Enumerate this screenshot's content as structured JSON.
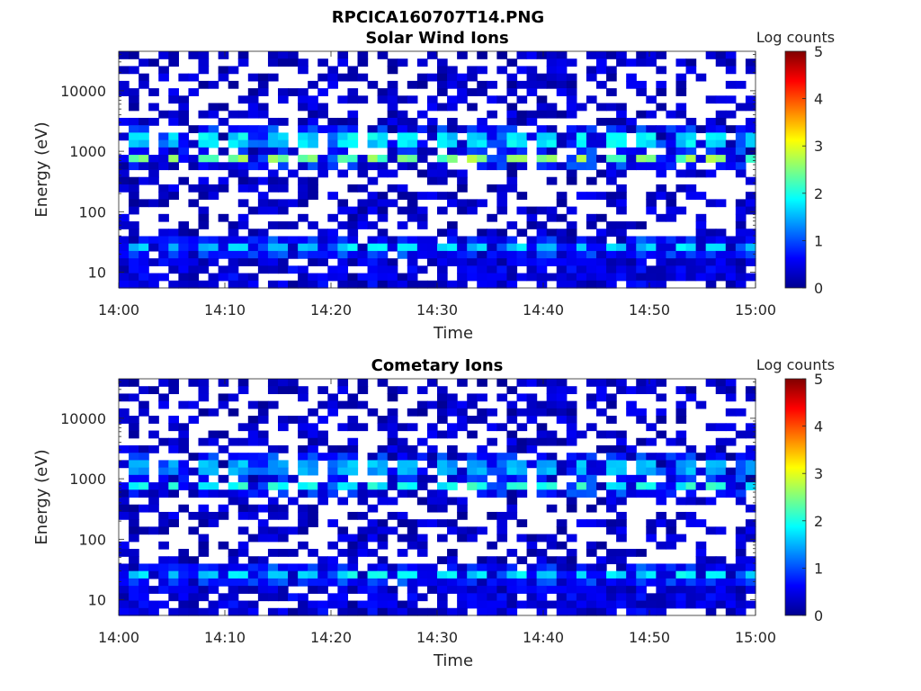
{
  "figure": {
    "title": "RPCICA160707T14.PNG"
  },
  "chart_data": [
    {
      "type": "heatmap",
      "title": "Solar Wind Ions",
      "xlabel": "Time",
      "ylabel": "Energy (eV)",
      "xtick_labels": [
        "14:00",
        "14:10",
        "14:20",
        "14:30",
        "14:40",
        "14:50",
        "15:00"
      ],
      "xlim": [
        "14:00",
        "15:00"
      ],
      "ytick_labels": [
        "10",
        "100",
        "1000",
        "10000"
      ],
      "yticks": [
        10,
        100,
        1000,
        10000
      ],
      "ylim": [
        5.5,
        45000
      ],
      "yscale": "log",
      "colorbar": {
        "label": "Log counts",
        "ticks": [
          "0",
          "1",
          "2",
          "3",
          "4",
          "5"
        ],
        "range": [
          0,
          5
        ],
        "colormap": "jet"
      },
      "background_color": "#ffffff",
      "n_time_bins": 64,
      "n_energy_bins": 32,
      "bright_bands": [
        {
          "energy_eV": 750,
          "log_counts": 2.8
        },
        {
          "energy_eV": 1600,
          "log_counts": 2.0
        },
        {
          "energy_eV": 25,
          "log_counts": 1.9
        }
      ],
      "sweep_period_minutes": 3.2,
      "seed": 11
    },
    {
      "type": "heatmap",
      "title": "Cometary Ions",
      "xlabel": "Time",
      "ylabel": "Energy (eV)",
      "xtick_labels": [
        "14:00",
        "14:10",
        "14:20",
        "14:30",
        "14:40",
        "14:50",
        "15:00"
      ],
      "xlim": [
        "14:00",
        "15:00"
      ],
      "ytick_labels": [
        "10",
        "100",
        "1000",
        "10000"
      ],
      "yticks": [
        10,
        100,
        1000,
        10000
      ],
      "ylim": [
        5.5,
        45000
      ],
      "yscale": "log",
      "colorbar": {
        "label": "Log counts",
        "ticks": [
          "0",
          "1",
          "2",
          "3",
          "4",
          "5"
        ],
        "range": [
          0,
          5
        ],
        "colormap": "jet"
      },
      "background_color": "#ffffff",
      "n_time_bins": 64,
      "n_energy_bins": 32,
      "bright_bands": [
        {
          "energy_eV": 750,
          "log_counts": 2.2
        },
        {
          "energy_eV": 1600,
          "log_counts": 1.7
        },
        {
          "energy_eV": 25,
          "log_counts": 2.0
        }
      ],
      "sweep_period_minutes": 3.2,
      "seed": 11
    }
  ]
}
